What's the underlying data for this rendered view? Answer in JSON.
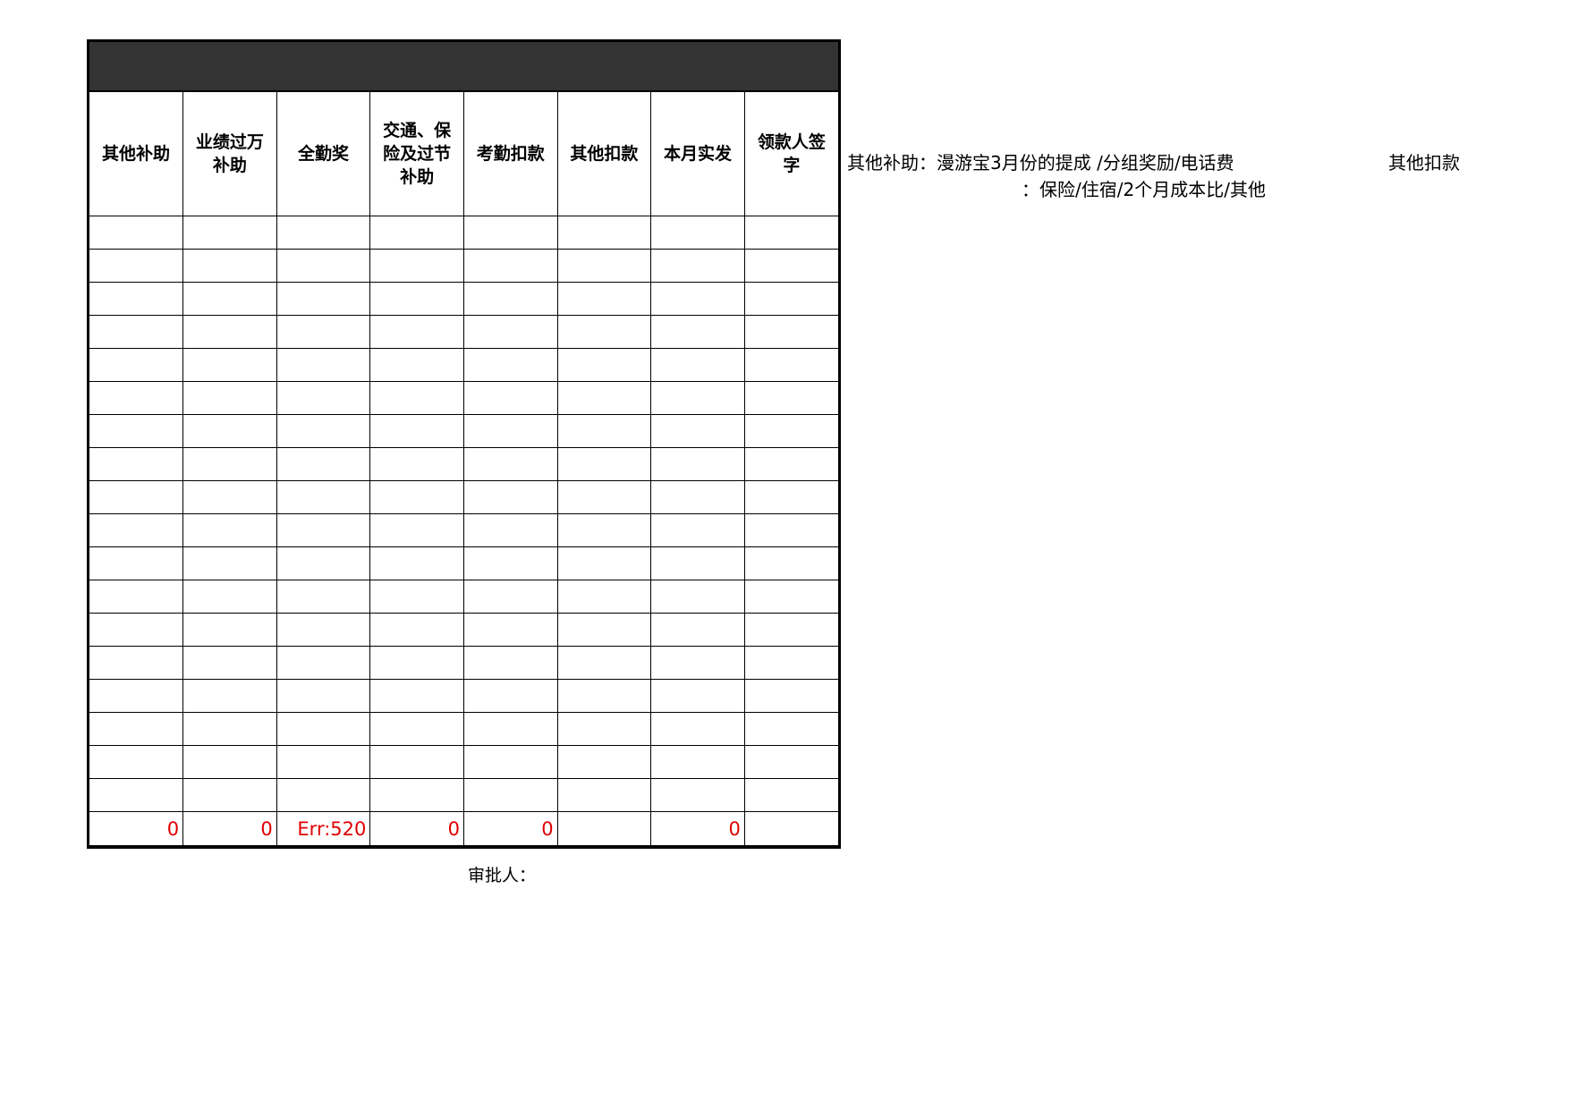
{
  "table": {
    "headers": [
      "其他补助",
      "业绩过万补助",
      "全勤奖",
      "交通、保险及过节补助",
      "考勤扣款",
      "其他扣款",
      "本月实发",
      "领款人签字"
    ],
    "empty_rows": 18,
    "totals": [
      "0",
      "0",
      "Err:520",
      "0",
      "0",
      "",
      "0",
      ""
    ],
    "total_color": "#e00000",
    "header_band_color": "#333333"
  },
  "notes": {
    "line1": "其他补助：漫游宝3月份的提成 /分组奖励/电话费",
    "line1_right": "其他扣款",
    "line2": "：保险/住宿/2个月成本比/其他"
  },
  "approver_label": "审批人："
}
